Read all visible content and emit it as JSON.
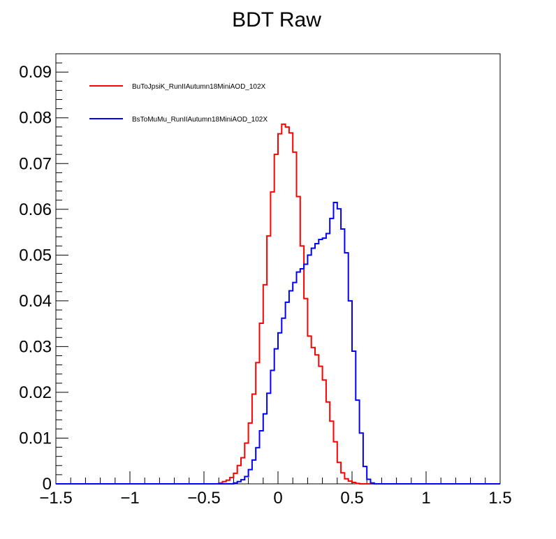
{
  "chart_data": {
    "type": "line",
    "title": "BDT Raw",
    "xlabel": "",
    "ylabel": "",
    "xlim": [
      -1.5,
      1.5
    ],
    "ylim": [
      0,
      0.094
    ],
    "x_ticks": [
      -1.5,
      -1,
      -0.5,
      0,
      0.5,
      1,
      1.5
    ],
    "x_tick_labels": [
      "−1.5",
      "−1",
      "−0.5",
      "0",
      "0.5",
      "1",
      "1.5"
    ],
    "y_ticks": [
      0,
      0.01,
      0.02,
      0.03,
      0.04,
      0.05,
      0.06,
      0.07,
      0.08,
      0.09
    ],
    "y_tick_labels": [
      "0",
      "0.01",
      "0.02",
      "0.03",
      "0.04",
      "0.05",
      "0.06",
      "0.07",
      "0.08",
      "0.09"
    ],
    "grid": false,
    "legend_position": "top-left",
    "bin_edges_start": -1.5,
    "bin_width": 0.025,
    "series": [
      {
        "name": "BuToJpsiK_RunIIAutumn18MiniAOD_102X",
        "color": "#ff0000",
        "bins": [
          {
            "x": -0.425,
            "y": 0.0
          },
          {
            "x": -0.4,
            "y": 0.0002
          },
          {
            "x": -0.375,
            "y": 0.0005
          },
          {
            "x": -0.35,
            "y": 0.0008
          },
          {
            "x": -0.325,
            "y": 0.0014
          },
          {
            "x": -0.3,
            "y": 0.0023
          },
          {
            "x": -0.275,
            "y": 0.004
          },
          {
            "x": -0.25,
            "y": 0.0057
          },
          {
            "x": -0.225,
            "y": 0.0089
          },
          {
            "x": -0.2,
            "y": 0.0133
          },
          {
            "x": -0.175,
            "y": 0.0196
          },
          {
            "x": -0.15,
            "y": 0.0265
          },
          {
            "x": -0.125,
            "y": 0.0351
          },
          {
            "x": -0.1,
            "y": 0.0435
          },
          {
            "x": -0.075,
            "y": 0.0542
          },
          {
            "x": -0.05,
            "y": 0.0638
          },
          {
            "x": -0.025,
            "y": 0.072
          },
          {
            "x": 0.0,
            "y": 0.0765
          },
          {
            "x": 0.025,
            "y": 0.0786
          },
          {
            "x": 0.05,
            "y": 0.078
          },
          {
            "x": 0.075,
            "y": 0.0767
          },
          {
            "x": 0.1,
            "y": 0.0725
          },
          {
            "x": 0.125,
            "y": 0.0628
          },
          {
            "x": 0.15,
            "y": 0.052
          },
          {
            "x": 0.175,
            "y": 0.0405
          },
          {
            "x": 0.2,
            "y": 0.0323
          },
          {
            "x": 0.225,
            "y": 0.0298
          },
          {
            "x": 0.25,
            "y": 0.0282
          },
          {
            "x": 0.275,
            "y": 0.0257
          },
          {
            "x": 0.3,
            "y": 0.0227
          },
          {
            "x": 0.325,
            "y": 0.0179
          },
          {
            "x": 0.35,
            "y": 0.0137
          },
          {
            "x": 0.375,
            "y": 0.0092
          },
          {
            "x": 0.4,
            "y": 0.0047
          },
          {
            "x": 0.425,
            "y": 0.0024
          },
          {
            "x": 0.45,
            "y": 0.0011
          },
          {
            "x": 0.475,
            "y": 0.0006
          },
          {
            "x": 0.5,
            "y": 0.0003
          },
          {
            "x": 0.525,
            "y": 0.0001
          },
          {
            "x": 0.55,
            "y": 0.0
          }
        ]
      },
      {
        "name": "BsToMuMu_RunIIAutumn18MiniAOD_102X",
        "color": "#0000ff",
        "bins": [
          {
            "x": -0.325,
            "y": 0.0
          },
          {
            "x": -0.3,
            "y": 0.0002
          },
          {
            "x": -0.275,
            "y": 0.0005
          },
          {
            "x": -0.25,
            "y": 0.0009
          },
          {
            "x": -0.225,
            "y": 0.0016
          },
          {
            "x": -0.2,
            "y": 0.0031
          },
          {
            "x": -0.175,
            "y": 0.0052
          },
          {
            "x": -0.15,
            "y": 0.0079
          },
          {
            "x": -0.125,
            "y": 0.0116
          },
          {
            "x": -0.1,
            "y": 0.0153
          },
          {
            "x": -0.075,
            "y": 0.0198
          },
          {
            "x": -0.05,
            "y": 0.0248
          },
          {
            "x": -0.025,
            "y": 0.0295
          },
          {
            "x": 0.0,
            "y": 0.033
          },
          {
            "x": 0.025,
            "y": 0.0362
          },
          {
            "x": 0.05,
            "y": 0.0397
          },
          {
            "x": 0.075,
            "y": 0.0422
          },
          {
            "x": 0.1,
            "y": 0.044
          },
          {
            "x": 0.125,
            "y": 0.0463
          },
          {
            "x": 0.15,
            "y": 0.047
          },
          {
            "x": 0.175,
            "y": 0.048
          },
          {
            "x": 0.2,
            "y": 0.05
          },
          {
            "x": 0.225,
            "y": 0.0515
          },
          {
            "x": 0.25,
            "y": 0.0525
          },
          {
            "x": 0.275,
            "y": 0.0534
          },
          {
            "x": 0.3,
            "y": 0.0537
          },
          {
            "x": 0.325,
            "y": 0.0547
          },
          {
            "x": 0.35,
            "y": 0.058
          },
          {
            "x": 0.375,
            "y": 0.0615
          },
          {
            "x": 0.4,
            "y": 0.0601
          },
          {
            "x": 0.425,
            "y": 0.0557
          },
          {
            "x": 0.45,
            "y": 0.0505
          },
          {
            "x": 0.475,
            "y": 0.04
          },
          {
            "x": 0.5,
            "y": 0.029
          },
          {
            "x": 0.525,
            "y": 0.0183
          },
          {
            "x": 0.55,
            "y": 0.0111
          },
          {
            "x": 0.575,
            "y": 0.0038
          },
          {
            "x": 0.6,
            "y": 0.001
          },
          {
            "x": 0.625,
            "y": 0.0002
          },
          {
            "x": 0.65,
            "y": 0.0
          }
        ]
      }
    ]
  }
}
